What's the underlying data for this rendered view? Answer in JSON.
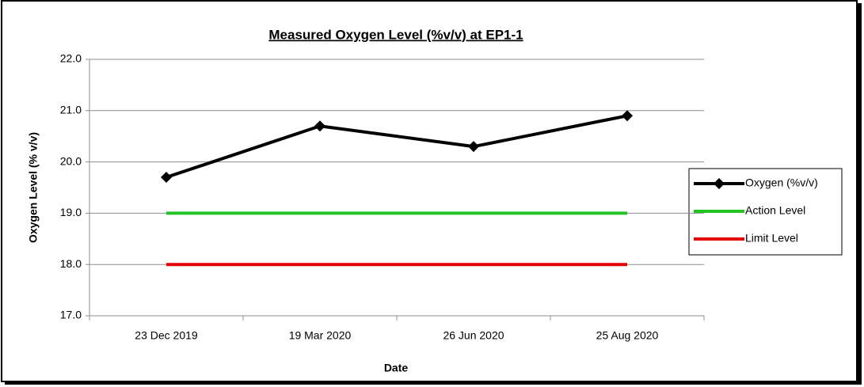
{
  "chart_data": {
    "type": "line",
    "title": "Measured Oxygen Level (%v/v) at EP1-1",
    "x_label": "Date",
    "y_label": "Oxygen Level (% v/v)",
    "categories": [
      "23 Dec 2019",
      "19 Mar 2020",
      "26 Jun 2020",
      "25 Aug 2020"
    ],
    "series": [
      {
        "name": "Oxygen (%v/v)",
        "color": "#000000",
        "marker": "diamond",
        "values": [
          19.7,
          20.7,
          20.3,
          20.9
        ]
      },
      {
        "name": "Action Level",
        "color": "#22c322",
        "values": [
          19,
          19,
          19,
          19
        ]
      },
      {
        "name": "Limit Level",
        "color": "#e60000",
        "values": [
          18,
          18,
          18,
          18
        ]
      }
    ],
    "ylim": [
      17,
      22
    ],
    "yticks": [
      {
        "value": 17,
        "label": "17.0"
      },
      {
        "value": 18,
        "label": "18.0"
      },
      {
        "value": 19,
        "label": "19.0"
      },
      {
        "value": 20,
        "label": "20.0"
      },
      {
        "value": 21,
        "label": "21.0"
      },
      {
        "value": 22,
        "label": "22.0"
      }
    ],
    "grid": true,
    "legend": "right"
  }
}
